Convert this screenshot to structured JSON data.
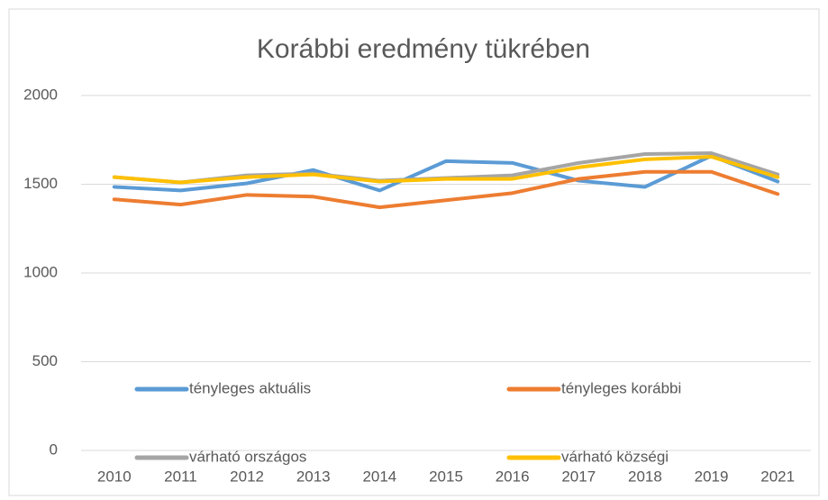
{
  "chart_data": {
    "type": "line",
    "title": "Korábbi eredmény tükrében",
    "categories": [
      "2010",
      "2011",
      "2012",
      "2013",
      "2014",
      "2015",
      "2016",
      "2017",
      "2018",
      "2019",
      "2021"
    ],
    "series": [
      {
        "name": "tényleges aktuális",
        "color": "#5b9bd5",
        "values": [
          1485,
          1465,
          1505,
          1580,
          1465,
          1630,
          1620,
          1520,
          1485,
          1660,
          1515
        ]
      },
      {
        "name": "tényleges korábbi",
        "color": "#ed7d31",
        "values": [
          1415,
          1385,
          1440,
          1430,
          1370,
          1410,
          1450,
          1530,
          1570,
          1570,
          1445
        ]
      },
      {
        "name": "várható országos",
        "color": "#a5a5a5",
        "values": [
          1540,
          1510,
          1550,
          1560,
          1520,
          1535,
          1550,
          1620,
          1670,
          1675,
          1555
        ]
      },
      {
        "name": "várható községi",
        "color": "#ffc000",
        "values": [
          1540,
          1510,
          1540,
          1555,
          1515,
          1530,
          1530,
          1595,
          1640,
          1655,
          1540
        ]
      }
    ],
    "ylim": [
      0,
      2000
    ],
    "yticks": [
      0,
      500,
      1000,
      1500,
      2000
    ],
    "grid": true
  }
}
